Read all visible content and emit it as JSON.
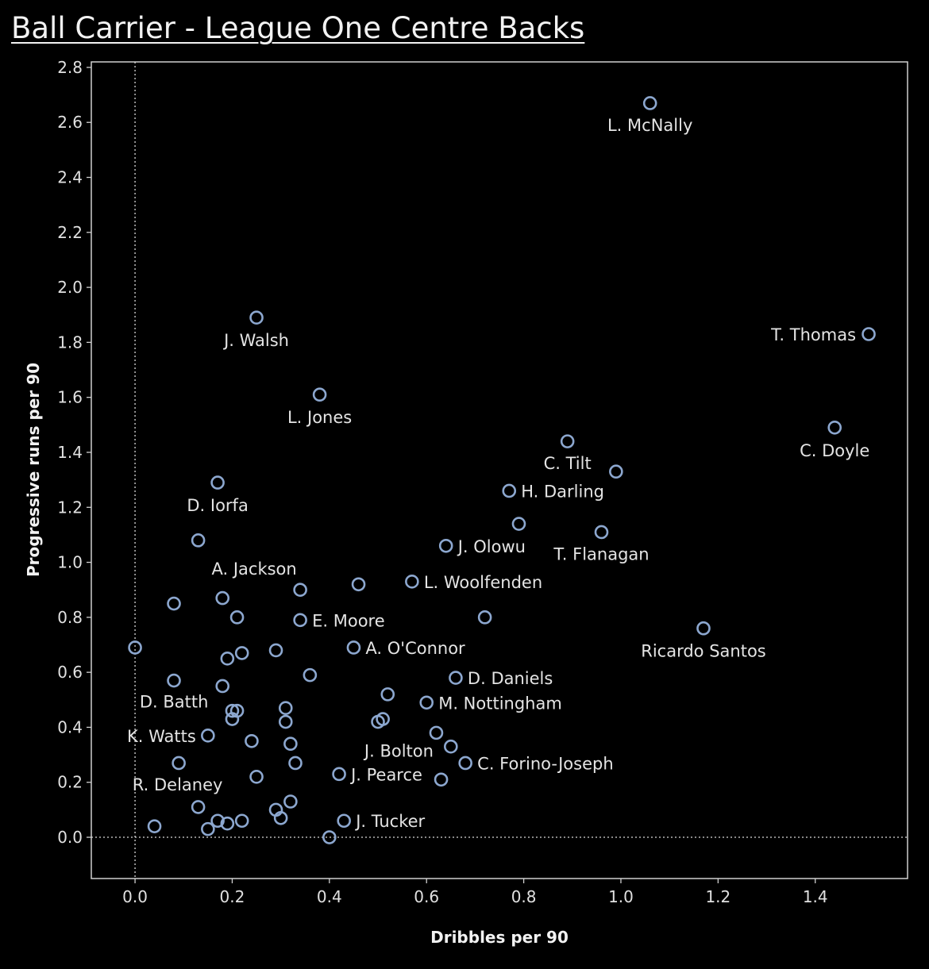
{
  "title": "Ball Carrier - League One Centre Backs",
  "chart_data": {
    "type": "scatter",
    "title": "Ball Carrier - League One Centre Backs",
    "xlabel": "Dribbles per 90",
    "ylabel": "Progressive runs per 90",
    "xlim": [
      -0.09,
      1.59
    ],
    "ylim": [
      -0.15,
      2.82
    ],
    "xticks": [
      "0.0",
      "0.2",
      "0.4",
      "0.6",
      "0.8",
      "1.0",
      "1.2",
      "1.4"
    ],
    "yticks": [
      "0.0",
      "0.2",
      "0.4",
      "0.6",
      "0.8",
      "1.0",
      "1.2",
      "1.4",
      "1.6",
      "1.8",
      "2.0",
      "2.2",
      "2.4",
      "2.6",
      "2.8"
    ],
    "grid": false,
    "marker_color": "#8ca7cf",
    "points": [
      {
        "x": 1.06,
        "y": 2.67,
        "label": "L. McNally"
      },
      {
        "x": 1.51,
        "y": 1.83,
        "label": "T. Thomas"
      },
      {
        "x": 0.25,
        "y": 1.89,
        "label": "J. Walsh"
      },
      {
        "x": 0.38,
        "y": 1.61,
        "label": "L. Jones"
      },
      {
        "x": 1.44,
        "y": 1.49,
        "label": "C. Doyle"
      },
      {
        "x": 0.89,
        "y": 1.44,
        "label": "C. Tilt"
      },
      {
        "x": 0.99,
        "y": 1.33,
        "label": ""
      },
      {
        "x": 0.77,
        "y": 1.26,
        "label": "H. Darling"
      },
      {
        "x": 0.17,
        "y": 1.29,
        "label": "D. Iorfa"
      },
      {
        "x": 0.79,
        "y": 1.14,
        "label": ""
      },
      {
        "x": 0.96,
        "y": 1.11,
        "label": "T. Flanagan"
      },
      {
        "x": 0.13,
        "y": 1.08,
        "label": ""
      },
      {
        "x": 0.64,
        "y": 1.06,
        "label": "J. Olowu"
      },
      {
        "x": 0.57,
        "y": 0.93,
        "label": "L. Woolfenden"
      },
      {
        "x": 0.46,
        "y": 0.92,
        "label": ""
      },
      {
        "x": 0.34,
        "y": 0.9,
        "label": "A. Jackson"
      },
      {
        "x": 0.18,
        "y": 0.87,
        "label": ""
      },
      {
        "x": 0.08,
        "y": 0.85,
        "label": ""
      },
      {
        "x": 0.21,
        "y": 0.8,
        "label": ""
      },
      {
        "x": 0.34,
        "y": 0.79,
        "label": "E. Moore"
      },
      {
        "x": 0.72,
        "y": 0.8,
        "label": ""
      },
      {
        "x": 1.17,
        "y": 0.76,
        "label": "Ricardo Santos"
      },
      {
        "x": 0.0,
        "y": 0.69,
        "label": ""
      },
      {
        "x": 0.45,
        "y": 0.69,
        "label": "A. O'Connor"
      },
      {
        "x": 0.29,
        "y": 0.68,
        "label": ""
      },
      {
        "x": 0.22,
        "y": 0.67,
        "label": ""
      },
      {
        "x": 0.19,
        "y": 0.65,
        "label": ""
      },
      {
        "x": 0.36,
        "y": 0.59,
        "label": ""
      },
      {
        "x": 0.66,
        "y": 0.58,
        "label": "D. Daniels"
      },
      {
        "x": 0.08,
        "y": 0.57,
        "label": ""
      },
      {
        "x": 0.18,
        "y": 0.55,
        "label": ""
      },
      {
        "x": 0.52,
        "y": 0.52,
        "label": ""
      },
      {
        "x": 0.6,
        "y": 0.49,
        "label": "M. Nottingham"
      },
      {
        "x": 0.31,
        "y": 0.47,
        "label": ""
      },
      {
        "x": 0.21,
        "y": 0.46,
        "label": ""
      },
      {
        "x": 0.2,
        "y": 0.46,
        "label": "D. Batth"
      },
      {
        "x": 0.2,
        "y": 0.43,
        "label": ""
      },
      {
        "x": 0.31,
        "y": 0.42,
        "label": ""
      },
      {
        "x": 0.5,
        "y": 0.42,
        "label": ""
      },
      {
        "x": 0.51,
        "y": 0.43,
        "label": ""
      },
      {
        "x": 0.62,
        "y": 0.38,
        "label": "J. Bolton"
      },
      {
        "x": 0.15,
        "y": 0.37,
        "label": "K. Watts"
      },
      {
        "x": 0.24,
        "y": 0.35,
        "label": ""
      },
      {
        "x": 0.32,
        "y": 0.34,
        "label": ""
      },
      {
        "x": 0.65,
        "y": 0.33,
        "label": ""
      },
      {
        "x": 0.68,
        "y": 0.27,
        "label": "C. Forino-Joseph"
      },
      {
        "x": 0.09,
        "y": 0.27,
        "label": ""
      },
      {
        "x": 0.33,
        "y": 0.27,
        "label": ""
      },
      {
        "x": 0.42,
        "y": 0.23,
        "label": "J. Pearce"
      },
      {
        "x": 0.25,
        "y": 0.22,
        "label": ""
      },
      {
        "x": 0.63,
        "y": 0.21,
        "label": ""
      },
      {
        "x": 0.13,
        "y": 0.11,
        "label": "R. Delaney"
      },
      {
        "x": 0.32,
        "y": 0.13,
        "label": ""
      },
      {
        "x": 0.29,
        "y": 0.1,
        "label": ""
      },
      {
        "x": 0.3,
        "y": 0.07,
        "label": ""
      },
      {
        "x": 0.43,
        "y": 0.06,
        "label": "J. Tucker"
      },
      {
        "x": 0.17,
        "y": 0.06,
        "label": ""
      },
      {
        "x": 0.22,
        "y": 0.06,
        "label": ""
      },
      {
        "x": 0.19,
        "y": 0.05,
        "label": ""
      },
      {
        "x": 0.04,
        "y": 0.04,
        "label": ""
      },
      {
        "x": 0.15,
        "y": 0.03,
        "label": ""
      },
      {
        "x": 0.4,
        "y": 0.0,
        "label": ""
      }
    ]
  }
}
